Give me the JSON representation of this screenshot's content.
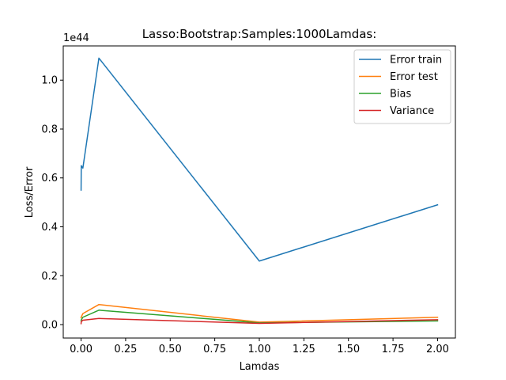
{
  "chart_data": {
    "type": "line",
    "title": "Lasso:Bootstrap:Samples:1000Lamdas:",
    "xlabel": "Lamdas",
    "ylabel": "Loss/Error",
    "y_offset_label": "1e44",
    "xlim": [
      -0.1,
      2.1
    ],
    "ylim": [
      -0.055,
      1.14
    ],
    "xticks": [
      0.0,
      0.25,
      0.5,
      0.75,
      1.0,
      1.25,
      1.5,
      1.75,
      2.0
    ],
    "xtick_labels": [
      "0.00",
      "0.25",
      "0.50",
      "0.75",
      "1.00",
      "1.25",
      "1.50",
      "1.75",
      "2.00"
    ],
    "yticks": [
      0.0,
      0.2,
      0.4,
      0.6,
      0.8,
      1.0
    ],
    "ytick_labels": [
      "0.0",
      "0.2",
      "0.4",
      "0.6",
      "0.8",
      "1.0"
    ],
    "grid": false,
    "legend_position": "top-right",
    "x": [
      0.0001,
      0.001,
      0.01,
      0.1,
      1.0,
      2.0
    ],
    "series": [
      {
        "name": "Error train",
        "color": "#1f77b4",
        "values": [
          0.55,
          0.65,
          0.64,
          1.09,
          0.26,
          0.49
        ]
      },
      {
        "name": "Error test",
        "color": "#ff7f0e",
        "values": [
          0.028,
          0.031,
          0.045,
          0.082,
          0.01,
          0.03
        ]
      },
      {
        "name": "Bias",
        "color": "#2ca02c",
        "values": [
          0.016,
          0.019,
          0.03,
          0.059,
          0.007,
          0.015
        ]
      },
      {
        "name": "Variance",
        "color": "#d62728",
        "values": [
          0.004,
          0.012,
          0.018,
          0.025,
          0.005,
          0.02
        ]
      }
    ]
  }
}
